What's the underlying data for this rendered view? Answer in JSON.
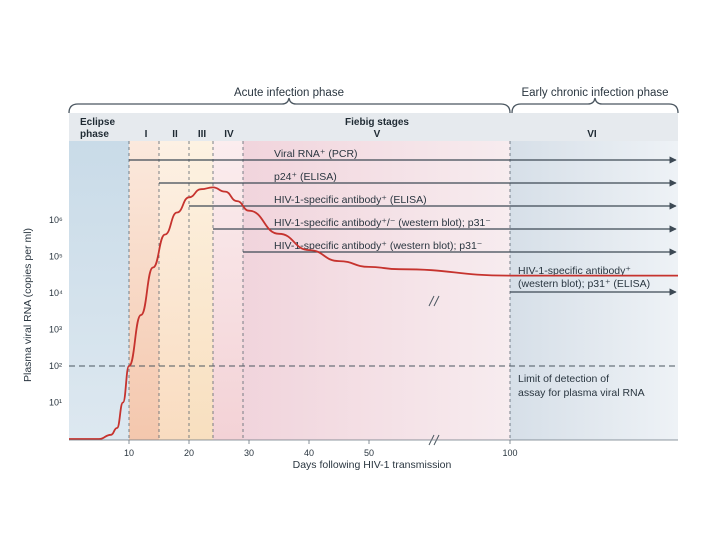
{
  "header": {
    "acute_phase": "Acute infection phase",
    "early_chronic_phase": "Early chronic infection phase",
    "eclipse_line1": "Eclipse",
    "eclipse_line2": "phase",
    "fiebig_title": "Fiebig stages",
    "stages": [
      "I",
      "II",
      "III",
      "IV",
      "V",
      "VI"
    ]
  },
  "assays": [
    {
      "label": "Viral RNA⁺ (PCR)",
      "start_day": 10
    },
    {
      "label": "p24⁺ (ELISA)",
      "start_day": 15
    },
    {
      "label": "HIV-1-specific antibody⁺ (ELISA)",
      "start_day": 20
    },
    {
      "label": "HIV-1-specific antibody⁺/⁻ (western blot); p31⁻",
      "start_day": 24
    },
    {
      "label": "HIV-1-specific antibody⁺ (western blot); p31⁻",
      "start_day": 29
    },
    {
      "label_line1": "HIV-1-specific antibody⁺",
      "label_line2": "(western blot); p31⁺ (ELISA)",
      "start_day": 100
    }
  ],
  "annotations": {
    "limit_line1": "Limit of detection of",
    "limit_line2": "assay for plasma viral RNA"
  },
  "colors": {
    "curve": "#c6332e",
    "arrow": "#3d4954",
    "eclipse_band": "#c9dbe8",
    "stage_I_band": "#f6cbb4",
    "stage_II_band": "#fbe2c6",
    "stage_III_band": "#fbe6c4",
    "stage_IV_band": "#f6dadb",
    "stage_V_band": "#f3dde3",
    "stage_VI_band": "#d9e1ea"
  },
  "chart_data": {
    "type": "line",
    "title": "",
    "xlabel": "Days following HIV-1 transmission",
    "ylabel": "Plasma viral RNA (copies per ml)",
    "y_scale": "log",
    "x_ticks": [
      10,
      20,
      30,
      40,
      50,
      100
    ],
    "y_ticks": [
      "10¹",
      "10²",
      "10³",
      "10⁴",
      "10⁵",
      "10⁶"
    ],
    "x_axis_break_between": [
      50,
      100
    ],
    "stage_boundaries_days": [
      10,
      15,
      20,
      24,
      29,
      100
    ],
    "limit_of_detection": 100,
    "series": [
      {
        "x": [
          0,
          5,
          7,
          8,
          9,
          10,
          12,
          14,
          16,
          18,
          20,
          22,
          24,
          26,
          28,
          30,
          35,
          40,
          45,
          50,
          55,
          100,
          110
        ],
        "y": [
          1,
          1,
          1.3,
          2,
          10,
          100,
          2500,
          50000,
          400000,
          1600000,
          4200000,
          7000000,
          7800000,
          6000000,
          3300000,
          1800000,
          420000,
          150000,
          75000,
          52000,
          45000,
          30000,
          30000
        ]
      }
    ]
  }
}
